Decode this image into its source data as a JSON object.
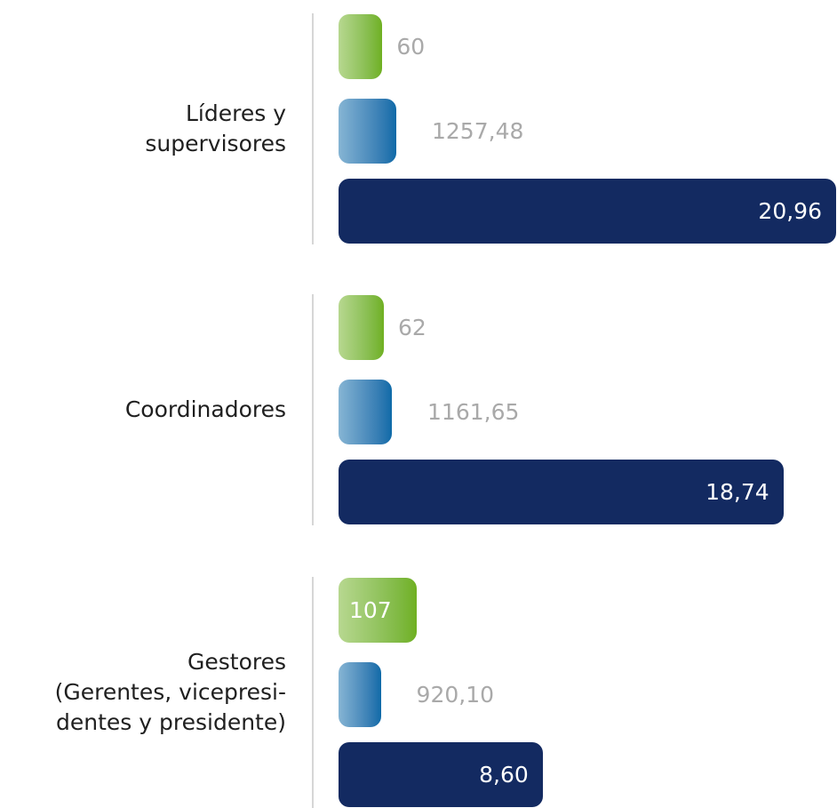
{
  "chart_data": {
    "type": "bar",
    "orientation": "horizontal",
    "categories": [
      "Líderes y\nsupervisores",
      "Coordinadores",
      "Gestores\n(Gerentes, vicepresi-\ndentes y presidente)"
    ],
    "series": [
      {
        "color": "#6fb020",
        "values": [
          60,
          62,
          107
        ],
        "value_labels": [
          "60",
          "62",
          "107"
        ]
      },
      {
        "color": "#0c6aa8",
        "values": [
          1257.48,
          1161.65,
          920.1
        ],
        "value_labels": [
          "1257,48",
          "1161,65",
          "920,10"
        ]
      },
      {
        "color": "#132a61",
        "values": [
          20.96,
          18.74,
          8.6
        ],
        "value_labels": [
          "20,96",
          "18,74",
          "8,60"
        ]
      }
    ]
  }
}
